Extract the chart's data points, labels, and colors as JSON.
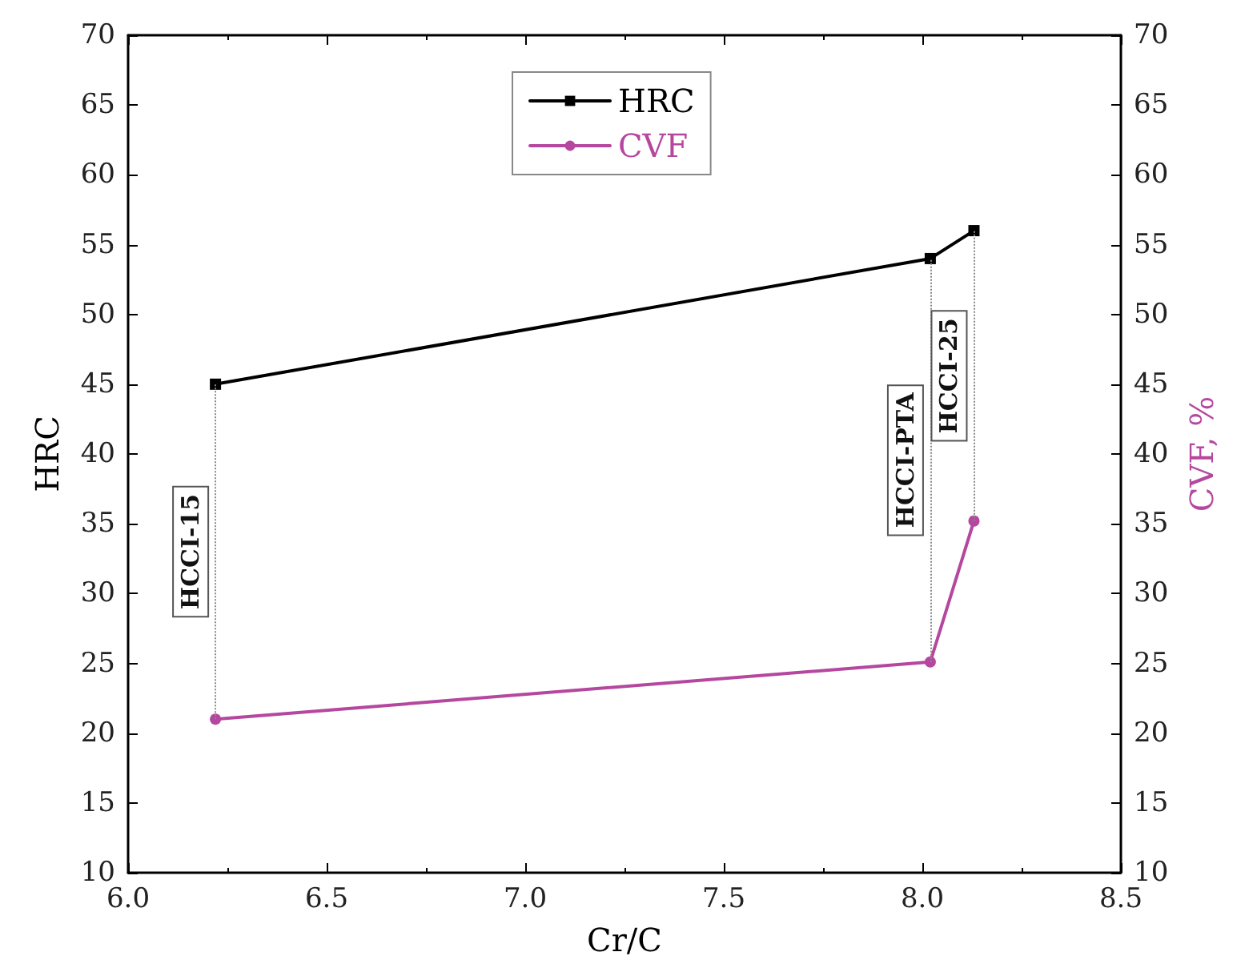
{
  "chart_data": {
    "type": "line",
    "xlabel": "Cr/C",
    "ylabel": "HRC",
    "y2label": "CVF, %",
    "series": [
      {
        "name": "HRC",
        "color": "#000000",
        "x": [
          6.22,
          8.02,
          8.13
        ],
        "values": [
          45,
          54,
          56
        ],
        "marker": "square"
      },
      {
        "name": "CVF",
        "color": "#b5479f",
        "x": [
          6.22,
          8.02,
          8.13
        ],
        "values": [
          21,
          25.1,
          35.2
        ],
        "marker": "circle",
        "axis": "y2"
      }
    ],
    "xlim": [
      6.0,
      8.5
    ],
    "xticks": [
      {
        "value": 6,
        "label": "6.0"
      },
      {
        "value": 6.5,
        "label": "6.5"
      },
      {
        "value": 7,
        "label": "7.0"
      },
      {
        "value": 7.5,
        "label": "7.5"
      },
      {
        "value": 8,
        "label": "8.0"
      },
      {
        "value": 8.5,
        "label": "8.5"
      }
    ],
    "ylim": [
      10,
      70
    ],
    "yticks": [
      10,
      15,
      20,
      25,
      30,
      35,
      40,
      45,
      50,
      55,
      60,
      65,
      70
    ],
    "y2lim": [
      10,
      70
    ],
    "y2ticks": [
      10,
      15,
      20,
      25,
      30,
      35,
      40,
      45,
      50,
      55,
      60,
      65,
      70
    ],
    "ref_lines": [
      {
        "axis": "x",
        "value": 6.22,
        "label": "HCCI-15",
        "line_style": "dotted",
        "color": "#888888"
      },
      {
        "axis": "x",
        "value": 8.02,
        "label": "HCCI-PTA",
        "line_style": "dotted",
        "color": "#888888"
      },
      {
        "axis": "x",
        "value": 8.13,
        "label": "HCCI-25",
        "line_style": "dotted",
        "color": "#888888"
      }
    ],
    "legend": "top",
    "grid": false,
    "line_style": "solid"
  }
}
